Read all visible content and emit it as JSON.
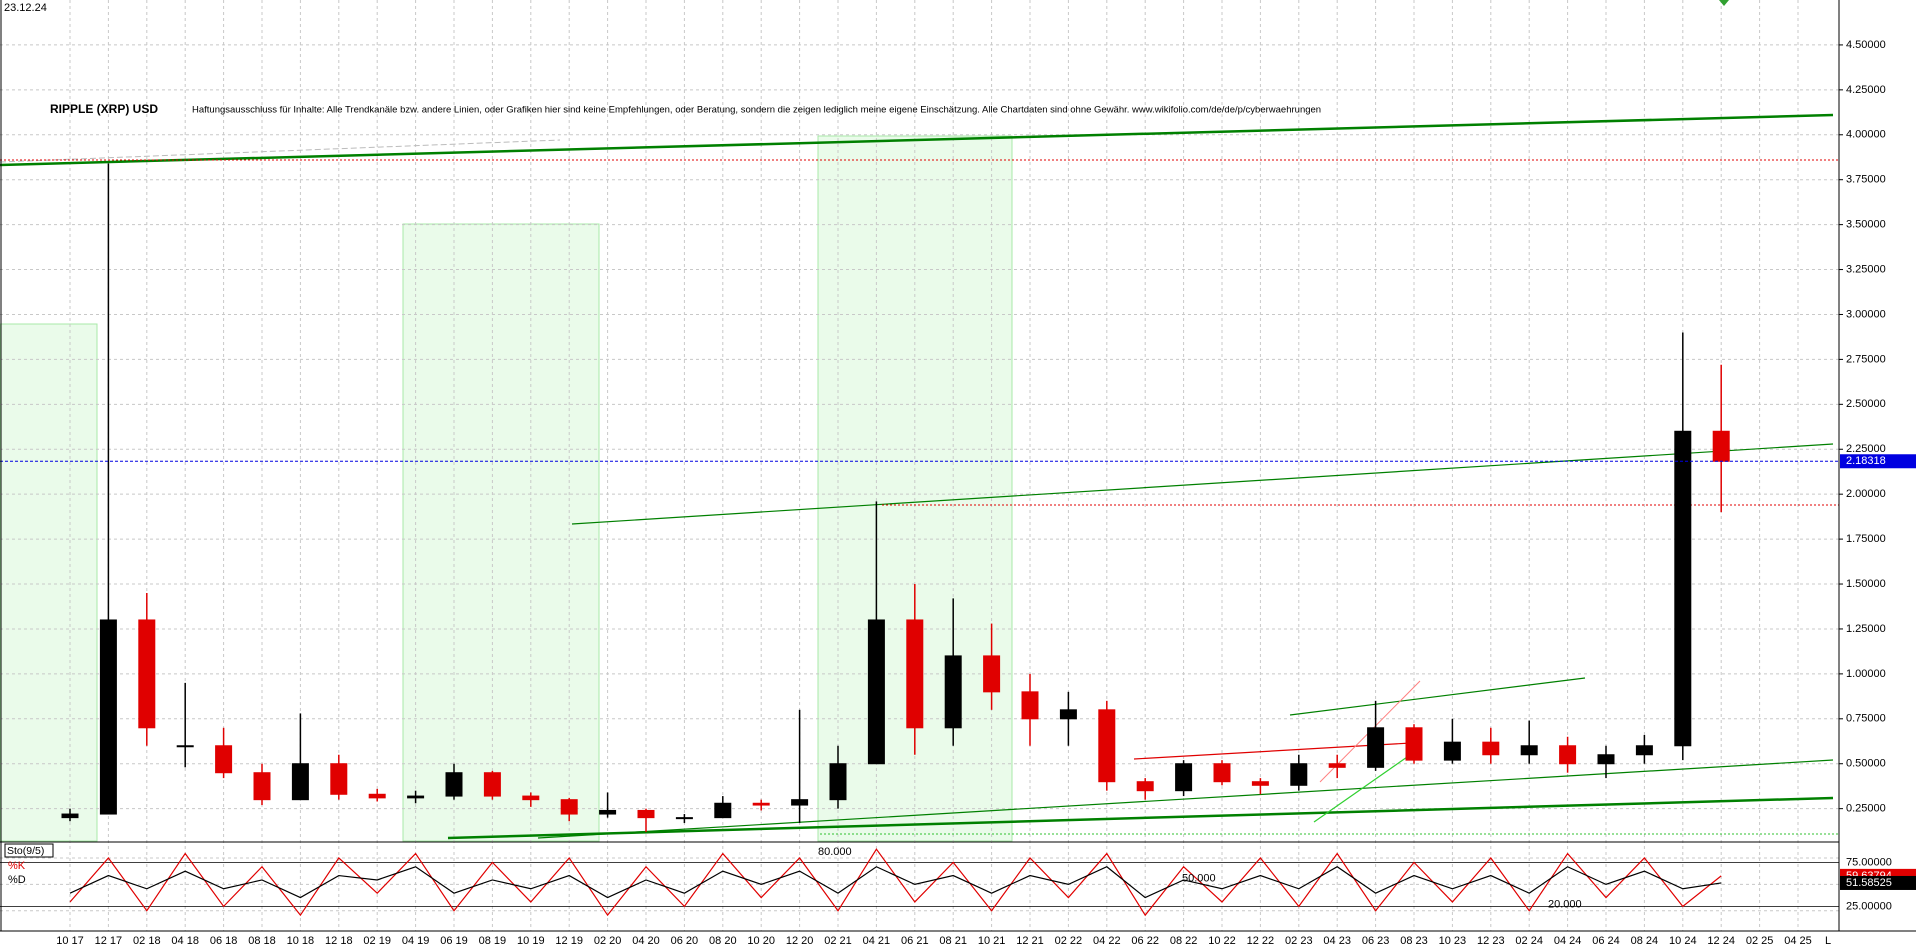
{
  "chart_data": {
    "type": "candlestick",
    "date": "23.12.24",
    "title": "RIPPLE (XRP) USD",
    "subtitle": "Haftungsausschluss für Inhalte: Alle Trendkanäle bzw. andere Linien, oder Grafiken hier sind keine Empfehlungen, oder Beratung, sondern die zeigen lediglich meine eigene Einschätzung. Alle Chartdaten sind ohne Gewähr. www.wikifolio.com/de/de/p/cyberwaehrungen",
    "categories": [
      "10 17",
      "12 17",
      "02 18",
      "04 18",
      "06 18",
      "08 18",
      "10 18",
      "12 18",
      "02 19",
      "04 19",
      "06 19",
      "08 19",
      "10 19",
      "12 19",
      "02 20",
      "04 20",
      "06 20",
      "08 20",
      "10 20",
      "12 20",
      "02 21",
      "04 21",
      "06 21",
      "08 21",
      "10 21",
      "12 21",
      "02 22",
      "04 22",
      "06 22",
      "08 22",
      "10 22",
      "12 22",
      "02 23",
      "04 23",
      "06 23",
      "08 23",
      "10 23",
      "12 23",
      "02 24",
      "04 24",
      "06 24",
      "08 24",
      "10 24",
      "12 24",
      "02 25",
      "04 25"
    ],
    "open": [
      0.2,
      0.22,
      1.3,
      0.6,
      0.6,
      0.45,
      0.3,
      0.5,
      0.33,
      0.31,
      0.32,
      0.45,
      0.32,
      0.3,
      0.22,
      0.24,
      0.2,
      0.2,
      0.28,
      0.27,
      0.3,
      0.5,
      1.3,
      0.7,
      1.1,
      0.9,
      0.75,
      0.8,
      0.4,
      0.35,
      0.5,
      0.4,
      0.38,
      0.5,
      0.48,
      0.7,
      0.52,
      0.62,
      0.55,
      0.6,
      0.5,
      0.55,
      0.6,
      2.35,
      null,
      null
    ],
    "high": [
      0.25,
      3.84,
      1.45,
      0.95,
      0.7,
      0.5,
      0.78,
      0.55,
      0.36,
      0.35,
      0.5,
      0.46,
      0.34,
      0.31,
      0.34,
      0.25,
      0.22,
      0.32,
      0.3,
      0.8,
      0.6,
      1.96,
      1.5,
      1.42,
      1.28,
      1.0,
      0.9,
      0.85,
      0.42,
      0.52,
      0.52,
      0.42,
      0.55,
      0.55,
      0.85,
      0.72,
      0.75,
      0.7,
      0.74,
      0.65,
      0.6,
      0.66,
      2.9,
      2.72,
      null,
      null
    ],
    "low": [
      0.18,
      0.22,
      0.6,
      0.48,
      0.42,
      0.27,
      0.3,
      0.3,
      0.29,
      0.28,
      0.3,
      0.3,
      0.26,
      0.18,
      0.2,
      0.12,
      0.17,
      0.2,
      0.24,
      0.17,
      0.25,
      0.5,
      0.55,
      0.6,
      0.8,
      0.6,
      0.6,
      0.35,
      0.3,
      0.32,
      0.38,
      0.33,
      0.35,
      0.42,
      0.46,
      0.5,
      0.5,
      0.5,
      0.5,
      0.45,
      0.42,
      0.5,
      0.52,
      1.9,
      null,
      null
    ],
    "close": [
      0.22,
      1.3,
      0.7,
      0.6,
      0.45,
      0.3,
      0.5,
      0.33,
      0.31,
      0.32,
      0.45,
      0.32,
      0.3,
      0.22,
      0.24,
      0.2,
      0.2,
      0.28,
      0.27,
      0.3,
      0.5,
      1.3,
      0.7,
      1.1,
      0.9,
      0.75,
      0.8,
      0.4,
      0.35,
      0.5,
      0.4,
      0.38,
      0.5,
      0.48,
      0.7,
      0.52,
      0.62,
      0.55,
      0.6,
      0.5,
      0.55,
      0.6,
      2.35,
      2.18318,
      null,
      null
    ],
    "up_color": "#000000",
    "down_color": "#e00000",
    "ylim": [
      0.07,
      4.75
    ],
    "yticks": [
      {
        "value": 0.25,
        "label": "0.25000"
      },
      {
        "value": 0.5,
        "label": "0.50000"
      },
      {
        "value": 0.75,
        "label": "0.75000"
      },
      {
        "value": 1,
        "label": "1.00000"
      },
      {
        "value": 1.25,
        "label": "1.25000"
      },
      {
        "value": 1.5,
        "label": "1.50000"
      },
      {
        "value": 1.75,
        "label": "1.75000"
      },
      {
        "value": 2,
        "label": "2.00000"
      },
      {
        "value": 2.25,
        "label": "2.25000"
      },
      {
        "value": 2.5,
        "label": "2.50000"
      },
      {
        "value": 2.75,
        "label": "2.75000"
      },
      {
        "value": 3,
        "label": "3.00000"
      },
      {
        "value": 3.25,
        "label": "3.25000"
      },
      {
        "value": 3.5,
        "label": "3.50000"
      },
      {
        "value": 3.75,
        "label": "3.75000"
      },
      {
        "value": 4,
        "label": "4.00000"
      },
      {
        "value": 4.25,
        "label": "4.25000"
      },
      {
        "value": 4.5,
        "label": "4.50000"
      }
    ],
    "grid": true,
    "indicator": {
      "title": "Sto(9/5)",
      "series": [
        {
          "name": "%K",
          "color": "#e00000",
          "values": [
            30,
            80,
            20,
            85,
            25,
            70,
            15,
            80,
            40,
            85,
            20,
            75,
            30,
            80,
            15,
            70,
            25,
            85,
            35,
            80,
            20,
            90,
            30,
            75,
            20,
            80,
            35,
            85,
            15,
            70,
            30,
            80,
            25,
            85,
            20,
            75,
            30,
            80,
            20,
            85,
            35,
            80,
            25,
            59.63794,
            null,
            null
          ]
        },
        {
          "name": "%D",
          "color": "#000000",
          "values": [
            40,
            60,
            45,
            65,
            45,
            55,
            35,
            60,
            55,
            70,
            40,
            55,
            45,
            60,
            35,
            55,
            40,
            65,
            50,
            65,
            40,
            70,
            50,
            60,
            40,
            60,
            50,
            70,
            35,
            55,
            45,
            60,
            45,
            70,
            40,
            60,
            45,
            60,
            40,
            70,
            50,
            65,
            45,
            51.58525,
            null,
            null
          ]
        }
      ],
      "ylim": [
        -3,
        97
      ],
      "yticks": [
        {
          "value": 25,
          "label": "25.00000"
        },
        {
          "value": 75,
          "label": "75.00000"
        }
      ],
      "levels": [
        {
          "value": 80,
          "label": "80.000"
        },
        {
          "value": 50,
          "label": "50.000"
        },
        {
          "value": 20,
          "label": "20.000"
        }
      ]
    },
    "corner_label": "L"
  }
}
